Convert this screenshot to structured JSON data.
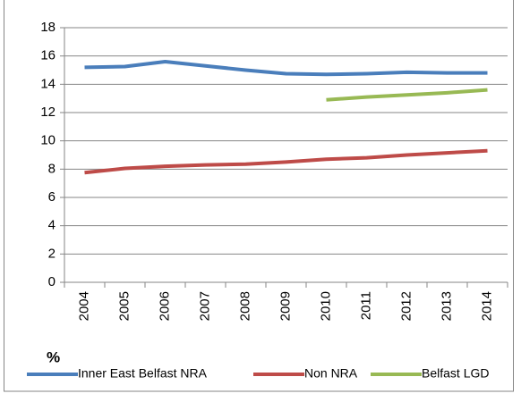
{
  "chart_data": {
    "type": "line",
    "y_label": "%",
    "categories": [
      "2004",
      "2005",
      "2006",
      "2007",
      "2008",
      "2009",
      "2010",
      "2011",
      "2012",
      "2013",
      "2014"
    ],
    "series": [
      {
        "name": "Inner East Belfast NRA",
        "color": "#4a7ebb",
        "values": [
          15.2,
          15.25,
          15.6,
          15.3,
          15.0,
          14.75,
          14.7,
          14.75,
          14.85,
          14.8,
          14.8
        ]
      },
      {
        "name": "Non NRA",
        "color": "#be4b48",
        "values": [
          7.75,
          8.05,
          8.2,
          8.3,
          8.35,
          8.5,
          8.7,
          8.8,
          9.0,
          9.15,
          9.3
        ]
      },
      {
        "name": "Belfast LGD",
        "color": "#98b954",
        "values": [
          null,
          null,
          null,
          null,
          null,
          null,
          12.9,
          13.1,
          13.25,
          13.4,
          13.6
        ]
      }
    ],
    "ylim": [
      0,
      18
    ],
    "yticks": [
      0,
      2,
      4,
      6,
      8,
      10,
      12,
      14,
      16,
      18
    ],
    "grid": true
  }
}
